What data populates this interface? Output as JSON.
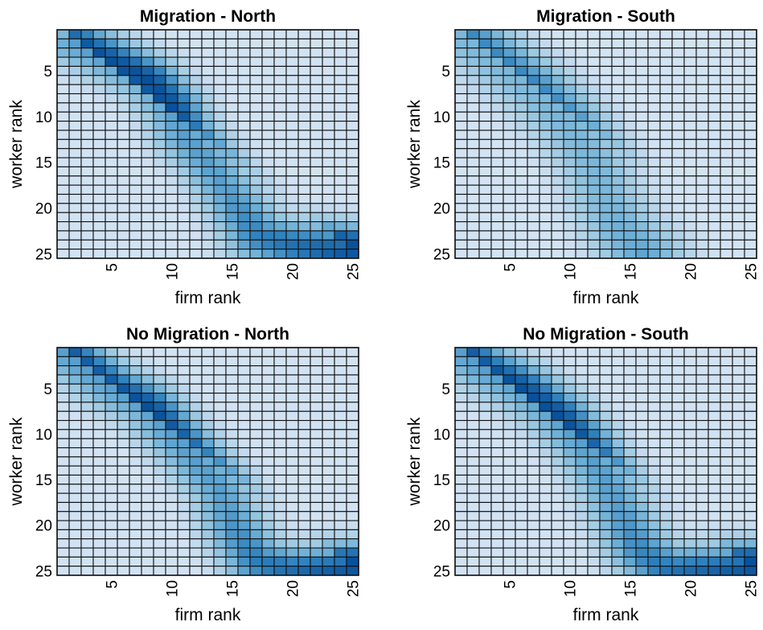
{
  "chart_data": [
    {
      "type": "heatmap",
      "title": "Migration - North",
      "xlabel": "firm rank",
      "ylabel": "worker rank",
      "n": 25,
      "xticks": [
        5,
        10,
        15,
        20,
        25
      ],
      "yticks": [
        5,
        10,
        15,
        20,
        25
      ],
      "colormap": [
        "#ffffff",
        "#08519c"
      ],
      "path": [
        [
          2,
          2
        ],
        [
          5,
          4
        ],
        [
          8,
          6
        ],
        [
          10,
          9
        ],
        [
          11,
          12
        ],
        [
          13,
          15
        ],
        [
          14,
          17
        ],
        [
          15,
          19
        ],
        [
          16,
          21
        ],
        [
          17,
          23
        ],
        [
          20,
          24
        ],
        [
          25,
          25
        ]
      ],
      "peak": 1.0,
      "width": 2.4,
      "floor": 0.14,
      "lower_boost": 0.3
    },
    {
      "type": "heatmap",
      "title": "Migration - South",
      "xlabel": "firm rank",
      "ylabel": "worker rank",
      "n": 25,
      "xticks": [
        5,
        10,
        15,
        20,
        25
      ],
      "yticks": [
        5,
        10,
        15,
        20,
        25
      ],
      "colormap": [
        "#ffffff",
        "#08519c"
      ],
      "path": [
        [
          1,
          1
        ],
        [
          3,
          3
        ],
        [
          5,
          5
        ],
        [
          7,
          7
        ],
        [
          10,
          11
        ],
        [
          12,
          15
        ],
        [
          13,
          19
        ],
        [
          14,
          22
        ],
        [
          16,
          25
        ]
      ],
      "peak": 0.85,
      "width": 2.8,
      "floor": 0.13,
      "lower_boost": 0.25
    },
    {
      "type": "heatmap",
      "title": "No Migration - North",
      "xlabel": "firm rank",
      "ylabel": "worker rank",
      "n": 25,
      "xticks": [
        5,
        10,
        15,
        20,
        25
      ],
      "yticks": [
        5,
        10,
        15,
        20,
        25
      ],
      "colormap": [
        "#ffffff",
        "#08519c"
      ],
      "path": [
        [
          1,
          1
        ],
        [
          3,
          3
        ],
        [
          5,
          5
        ],
        [
          8,
          7
        ],
        [
          10,
          10
        ],
        [
          12,
          13
        ],
        [
          14,
          16
        ],
        [
          15,
          20
        ],
        [
          16,
          22
        ],
        [
          17,
          24
        ],
        [
          20,
          25
        ],
        [
          25,
          25
        ]
      ],
      "peak": 1.0,
      "width": 2.4,
      "floor": 0.14,
      "lower_boost": 0.3
    },
    {
      "type": "heatmap",
      "title": "No Migration - South",
      "xlabel": "firm rank",
      "ylabel": "worker rank",
      "n": 25,
      "xticks": [
        5,
        10,
        15,
        20,
        25
      ],
      "yticks": [
        5,
        10,
        15,
        20,
        25
      ],
      "colormap": [
        "#ffffff",
        "#08519c"
      ],
      "path": [
        [
          1,
          1
        ],
        [
          3,
          3
        ],
        [
          6,
          5
        ],
        [
          9,
          8
        ],
        [
          11,
          11
        ],
        [
          13,
          15
        ],
        [
          14,
          18
        ],
        [
          15,
          21
        ],
        [
          16,
          23
        ],
        [
          18,
          25
        ],
        [
          25,
          25
        ]
      ],
      "peak": 1.0,
      "width": 2.5,
      "floor": 0.14,
      "lower_boost": 0.3
    }
  ]
}
